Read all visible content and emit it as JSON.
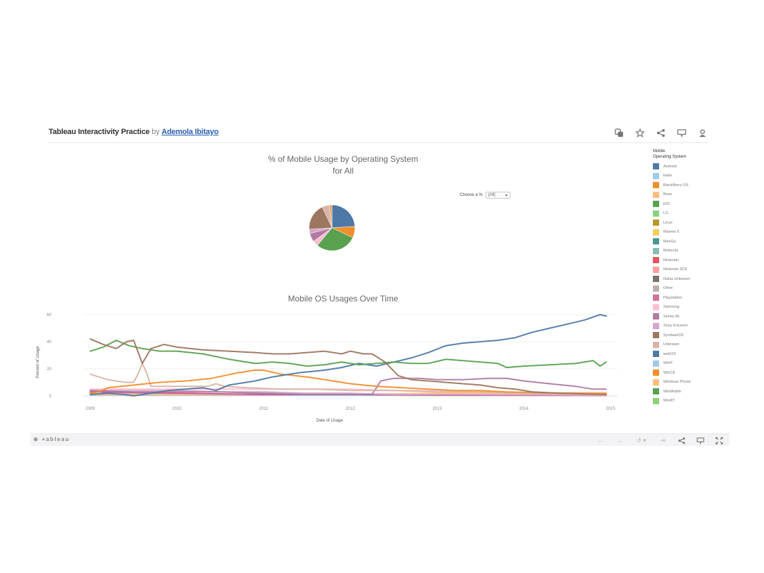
{
  "header": {
    "title": "Tableau Interactivity Practice",
    "by": "by",
    "author": "Ademola Ibitayo"
  },
  "header_icons": [
    "duplicate-icon",
    "favorite-star-icon",
    "share-icon",
    "comment-icon",
    "profile-icon"
  ],
  "filter": {
    "label": "Choose a %",
    "selected": "(All)"
  },
  "toolbar": {
    "logo": "+ableau",
    "buttons": [
      "undo",
      "redo",
      "revert",
      "pause",
      "share",
      "comment",
      "fullscreen"
    ],
    "undo": "←",
    "redo": "→",
    "revert": "↺ ▾",
    "pause": "⇥"
  },
  "chart_data": [
    {
      "type": "pie",
      "title": "% of Mobile Usage by Operating System",
      "subtitle": "for All",
      "slices": [
        {
          "label": "Android",
          "value": 24,
          "color": "#4e79a7"
        },
        {
          "label": "BlackBerry OS",
          "value": 8,
          "color": "#f28e2b"
        },
        {
          "label": "iOS",
          "value": 29,
          "color": "#59a14f"
        },
        {
          "label": "Samsung",
          "value": 4,
          "color": "#fabfd2"
        },
        {
          "label": "Series 40",
          "value": 6,
          "color": "#b07aa1"
        },
        {
          "label": "Sony Ericsson",
          "value": 3,
          "color": "#d4a6c8"
        },
        {
          "label": "SymbianOS",
          "value": 19,
          "color": "#9d7660"
        },
        {
          "label": "Unknown",
          "value": 5,
          "color": "#d7b5a6"
        },
        {
          "label": "Other",
          "value": 2,
          "color": "#e8a26b"
        }
      ]
    },
    {
      "type": "line",
      "title": "Mobile OS Usages Over Time",
      "xlabel": "Date of Usage",
      "ylabel": "Percent of Usage",
      "ylim": [
        0,
        60
      ],
      "yticks": [
        0,
        20,
        40,
        60
      ],
      "xlim": [
        2008.92,
        2015.08
      ],
      "xticks": [
        "2009",
        "2010",
        "2011",
        "2012",
        "2013",
        "2014",
        "2015"
      ],
      "grid": true,
      "legend_position": "right",
      "series": [
        {
          "name": "SymbianOS",
          "color": "#9d7660",
          "points": [
            [
              2009.0,
              42
            ],
            [
              2009.15,
              38
            ],
            [
              2009.3,
              35
            ],
            [
              2009.42,
              40
            ],
            [
              2009.5,
              41
            ],
            [
              2009.6,
              24
            ],
            [
              2009.7,
              35
            ],
            [
              2009.85,
              38
            ],
            [
              2010.0,
              36
            ],
            [
              2010.3,
              34
            ],
            [
              2010.6,
              33
            ],
            [
              2010.9,
              32
            ],
            [
              2011.1,
              31
            ],
            [
              2011.3,
              31
            ],
            [
              2011.5,
              32
            ],
            [
              2011.7,
              33
            ],
            [
              2011.9,
              31
            ],
            [
              2012.0,
              33
            ],
            [
              2012.15,
              31
            ],
            [
              2012.25,
              31
            ],
            [
              2012.4,
              25
            ],
            [
              2012.55,
              15
            ],
            [
              2012.7,
              12
            ],
            [
              2012.9,
              11
            ],
            [
              2013.1,
              10
            ],
            [
              2013.3,
              9
            ],
            [
              2013.5,
              8
            ],
            [
              2013.7,
              6
            ],
            [
              2013.9,
              5
            ],
            [
              2014.1,
              3
            ],
            [
              2014.4,
              2
            ],
            [
              2014.7,
              1.5
            ],
            [
              2014.95,
              1
            ]
          ]
        },
        {
          "name": "iOS",
          "color": "#59a14f",
          "points": [
            [
              2009.0,
              33
            ],
            [
              2009.15,
              36
            ],
            [
              2009.3,
              41
            ],
            [
              2009.45,
              37
            ],
            [
              2009.6,
              35
            ],
            [
              2009.8,
              33
            ],
            [
              2010.0,
              33
            ],
            [
              2010.3,
              31
            ],
            [
              2010.6,
              27
            ],
            [
              2010.9,
              24
            ],
            [
              2011.1,
              25
            ],
            [
              2011.3,
              24
            ],
            [
              2011.5,
              22
            ],
            [
              2011.7,
              23
            ],
            [
              2011.9,
              25
            ],
            [
              2012.1,
              23
            ],
            [
              2012.3,
              24
            ],
            [
              2012.5,
              25
            ],
            [
              2012.7,
              24
            ],
            [
              2012.9,
              24
            ],
            [
              2013.1,
              27
            ],
            [
              2013.3,
              26
            ],
            [
              2013.5,
              25
            ],
            [
              2013.7,
              24
            ],
            [
              2013.8,
              21
            ],
            [
              2014.0,
              22
            ],
            [
              2014.3,
              23
            ],
            [
              2014.6,
              24
            ],
            [
              2014.8,
              26
            ],
            [
              2014.88,
              22
            ],
            [
              2014.95,
              25
            ]
          ]
        },
        {
          "name": "Android",
          "color": "#4e79a7",
          "points": [
            [
              2009.0,
              1
            ],
            [
              2009.2,
              2
            ],
            [
              2009.4,
              1
            ],
            [
              2009.5,
              0
            ],
            [
              2009.7,
              2
            ],
            [
              2009.9,
              4
            ],
            [
              2010.1,
              5
            ],
            [
              2010.3,
              6
            ],
            [
              2010.45,
              4
            ],
            [
              2010.6,
              8
            ],
            [
              2010.9,
              11
            ],
            [
              2011.1,
              14
            ],
            [
              2011.4,
              17
            ],
            [
              2011.7,
              19
            ],
            [
              2011.9,
              21
            ],
            [
              2012.1,
              24
            ],
            [
              2012.3,
              22
            ],
            [
              2012.5,
              25
            ],
            [
              2012.7,
              28
            ],
            [
              2012.9,
              32
            ],
            [
              2013.1,
              37
            ],
            [
              2013.3,
              39
            ],
            [
              2013.5,
              40
            ],
            [
              2013.7,
              41
            ],
            [
              2013.9,
              43
            ],
            [
              2014.1,
              47
            ],
            [
              2014.3,
              50
            ],
            [
              2014.5,
              53
            ],
            [
              2014.7,
              56
            ],
            [
              2014.88,
              60
            ],
            [
              2014.95,
              59
            ]
          ]
        },
        {
          "name": "BlackBerry OS",
          "color": "#f28e2b",
          "points": [
            [
              2009.0,
              2
            ],
            [
              2009.1,
              3
            ],
            [
              2009.2,
              6
            ],
            [
              2009.5,
              8
            ],
            [
              2009.8,
              10
            ],
            [
              2010.1,
              11
            ],
            [
              2010.4,
              13
            ],
            [
              2010.7,
              17
            ],
            [
              2010.9,
              19
            ],
            [
              2011.0,
              19
            ],
            [
              2011.2,
              16
            ],
            [
              2011.5,
              14
            ],
            [
              2011.8,
              11
            ],
            [
              2012.0,
              9
            ],
            [
              2012.3,
              7
            ],
            [
              2012.6,
              6
            ],
            [
              2012.9,
              5
            ],
            [
              2013.2,
              4
            ],
            [
              2013.5,
              4
            ],
            [
              2013.8,
              3
            ],
            [
              2014.1,
              2.5
            ],
            [
              2014.5,
              2
            ],
            [
              2014.95,
              1.5
            ]
          ]
        },
        {
          "name": "Unknown",
          "color": "#d7b5a6",
          "points": [
            [
              2009.0,
              16
            ],
            [
              2009.2,
              12
            ],
            [
              2009.4,
              10
            ],
            [
              2009.5,
              10
            ],
            [
              2009.55,
              16
            ],
            [
              2009.6,
              24
            ],
            [
              2009.65,
              17
            ],
            [
              2009.7,
              7
            ],
            [
              2009.9,
              7
            ],
            [
              2010.2,
              7
            ],
            [
              2010.35,
              7
            ],
            [
              2010.45,
              9
            ],
            [
              2010.55,
              7
            ],
            [
              2010.8,
              6
            ],
            [
              2011.2,
              5
            ],
            [
              2011.6,
              5
            ],
            [
              2012.0,
              4
            ],
            [
              2012.5,
              4
            ],
            [
              2013.0,
              3
            ],
            [
              2013.5,
              3
            ],
            [
              2014.0,
              2
            ],
            [
              2014.95,
              1.5
            ]
          ]
        },
        {
          "name": "Series 40",
          "color": "#b07aa1",
          "points": [
            [
              2009.0,
              4
            ],
            [
              2009.5,
              3
            ],
            [
              2010.0,
              3
            ],
            [
              2010.5,
              3
            ],
            [
              2011.0,
              2
            ],
            [
              2011.5,
              1
            ],
            [
              2012.0,
              1
            ],
            [
              2012.25,
              1
            ],
            [
              2012.35,
              11
            ],
            [
              2012.5,
              13
            ],
            [
              2012.8,
              13
            ],
            [
              2013.0,
              12
            ],
            [
              2013.3,
              12
            ],
            [
              2013.6,
              13
            ],
            [
              2013.8,
              13
            ],
            [
              2014.0,
              11
            ],
            [
              2014.3,
              9
            ],
            [
              2014.6,
              7
            ],
            [
              2014.8,
              5
            ],
            [
              2014.95,
              5
            ]
          ]
        },
        {
          "name": "Samsung",
          "color": "#fabfd2",
          "points": [
            [
              2009.0,
              5
            ],
            [
              2009.5,
              5
            ],
            [
              2010.0,
              5
            ],
            [
              2010.5,
              5
            ],
            [
              2011.0,
              5
            ],
            [
              2011.5,
              5
            ],
            [
              2012.0,
              5
            ],
            [
              2012.5,
              4
            ],
            [
              2013.0,
              4
            ],
            [
              2013.5,
              3
            ],
            [
              2014.0,
              2
            ],
            [
              2014.95,
              1
            ]
          ]
        },
        {
          "name": "Sony Ericsson",
          "color": "#d4a6c8",
          "points": [
            [
              2009.0,
              4
            ],
            [
              2009.5,
              4
            ],
            [
              2010.0,
              4
            ],
            [
              2010.5,
              3
            ],
            [
              2011.0,
              3
            ],
            [
              2011.5,
              2
            ],
            [
              2012.0,
              2
            ],
            [
              2012.5,
              1
            ],
            [
              2013.0,
              1
            ],
            [
              2014.95,
              0.5
            ]
          ]
        },
        {
          "name": "Playstation",
          "color": "#d45087",
          "points": [
            [
              2009.0,
              3
            ],
            [
              2010.0,
              2
            ],
            [
              2011.0,
              1
            ],
            [
              2012.0,
              1
            ],
            [
              2013.0,
              0.5
            ],
            [
              2014.95,
              0.3
            ]
          ]
        },
        {
          "name": "Windows Phone",
          "color": "#ffbe7d",
          "points": [
            [
              2009.0,
              1
            ],
            [
              2010.0,
              1
            ],
            [
              2011.0,
              1
            ],
            [
              2012.0,
              1
            ],
            [
              2013.0,
              2
            ],
            [
              2014.0,
              2
            ],
            [
              2014.95,
              2.5
            ]
          ]
        },
        {
          "name": "bada",
          "color": "#a0cbe8",
          "points": [
            [
              2009.0,
              0.5
            ],
            [
              2014.95,
              0.5
            ]
          ]
        },
        {
          "name": "Nokia Unknown",
          "color": "#6b6b6b",
          "points": [
            [
              2009.0,
              1
            ],
            [
              2014.95,
              0.5
            ]
          ]
        },
        {
          "name": "Other",
          "color": "#bab0ac",
          "points": [
            [
              2009.0,
              1.5
            ],
            [
              2014.95,
              0.8
            ]
          ]
        }
      ]
    }
  ],
  "legend": {
    "title_line1": "Mobile",
    "title_line2": "Operating System",
    "items": [
      {
        "label": "Android",
        "color": "#4e79a7"
      },
      {
        "label": "bada",
        "color": "#a0cbe8"
      },
      {
        "label": "BlackBerry OS",
        "color": "#f28e2b"
      },
      {
        "label": "Brew",
        "color": "#ffbe7d"
      },
      {
        "label": "iOS",
        "color": "#59a14f"
      },
      {
        "label": "LG",
        "color": "#8cd17d"
      },
      {
        "label": "Linux",
        "color": "#b6992d"
      },
      {
        "label": "Maemo 5",
        "color": "#f1ce63"
      },
      {
        "label": "MeeGo",
        "color": "#499894"
      },
      {
        "label": "Motorola",
        "color": "#86bcb6"
      },
      {
        "label": "Nintendo",
        "color": "#e15759"
      },
      {
        "label": "Nintendo 3DS",
        "color": "#ff9d9a"
      },
      {
        "label": "Nokia Unknown",
        "color": "#79706e"
      },
      {
        "label": "Other",
        "color": "#bab0ac"
      },
      {
        "label": "Playstation",
        "color": "#d37295"
      },
      {
        "label": "Samsung",
        "color": "#fabfd2"
      },
      {
        "label": "Series 40",
        "color": "#b07aa1"
      },
      {
        "label": "Sony Ericsson",
        "color": "#d4a6c8"
      },
      {
        "label": "SymbianOS",
        "color": "#9d7660"
      },
      {
        "label": "Unknown",
        "color": "#d7b5a6"
      },
      {
        "label": "webOS",
        "color": "#4e79a7"
      },
      {
        "label": "WinP",
        "color": "#a0cbe8"
      },
      {
        "label": "WinCE",
        "color": "#f28e2b"
      },
      {
        "label": "Windows Phone",
        "color": "#ffbe7d"
      },
      {
        "label": "WinMobile",
        "color": "#59a14f"
      },
      {
        "label": "WinRT",
        "color": "#8cd17d"
      }
    ]
  }
}
